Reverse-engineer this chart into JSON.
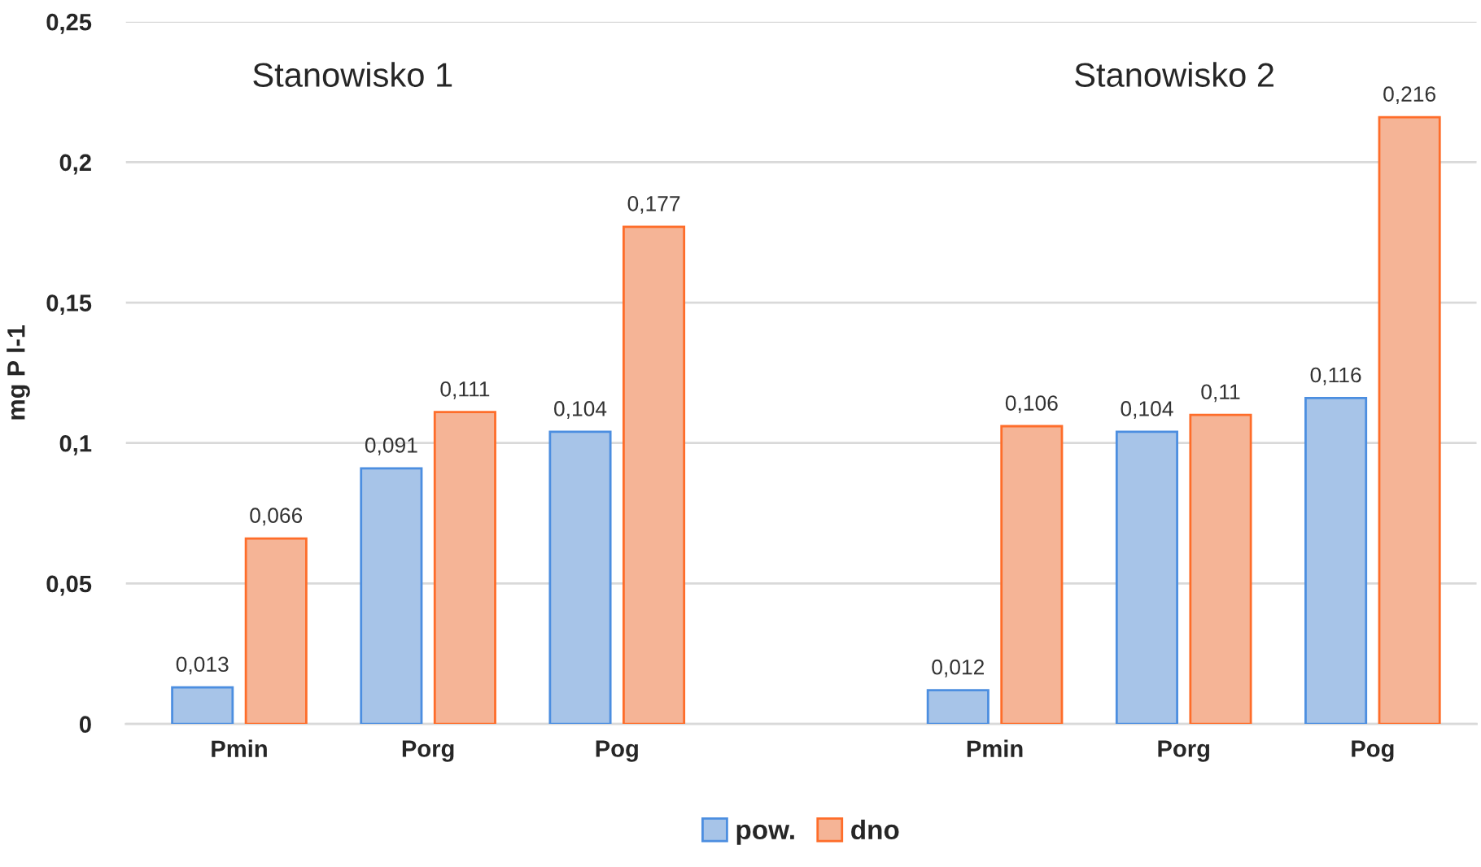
{
  "chart_data": {
    "type": "bar",
    "ylabel": "mg P l-1",
    "categories": [
      "Pmin",
      "Porg",
      "Pog",
      null,
      "Pmin",
      "Porg",
      "Pog"
    ],
    "series": [
      {
        "name": "pow.",
        "color": "#a7c4e8",
        "values": [
          0.013,
          0.091,
          0.104,
          null,
          0.012,
          0.104,
          0.116
        ],
        "value_labels": [
          "0,013",
          "0,091",
          "0,104",
          null,
          "0,012",
          "0,104",
          "0,116"
        ]
      },
      {
        "name": "dno",
        "color": "#f5b496",
        "values": [
          0.066,
          0.111,
          0.177,
          null,
          0.106,
          0.11,
          0.216
        ],
        "value_labels": [
          "0,066",
          "0,111",
          "0,177",
          null,
          "0,106",
          "0,11",
          "0,216"
        ]
      }
    ],
    "ylim": [
      0,
      0.25
    ],
    "yticks": [
      0,
      {
        "value": 0.05,
        "label": "0,05"
      },
      {
        "value": 0.1,
        "label": "0,1"
      },
      {
        "value": 0.15,
        "label": "0,15"
      },
      {
        "value": 0.2,
        "label": "0,2"
      },
      {
        "value": 0.25,
        "label": "0,25"
      }
    ],
    "grid": "y",
    "legend": "bottom",
    "annotations": [
      "Stanowisko 1",
      "Stanowisko 2"
    ]
  }
}
